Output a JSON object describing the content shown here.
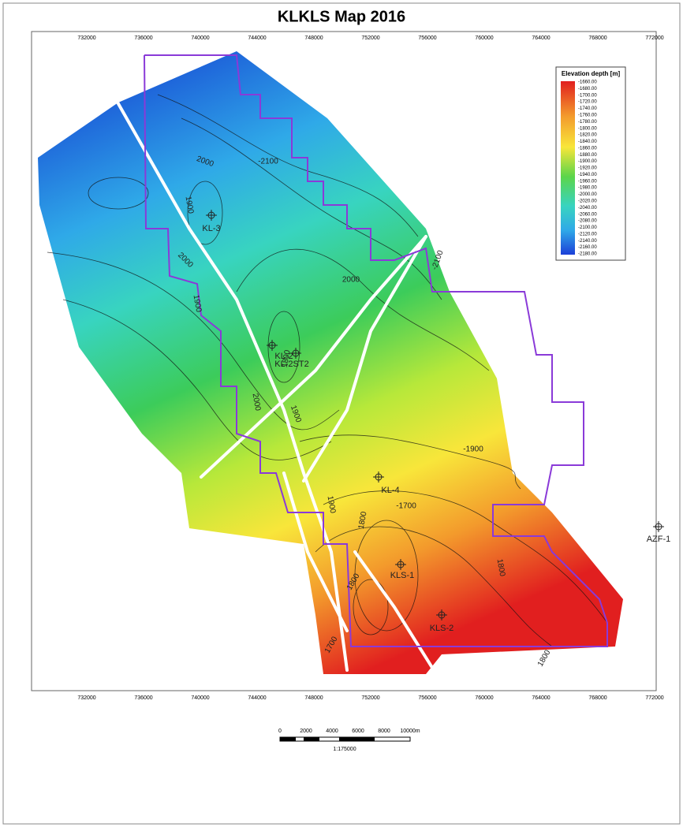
{
  "title": "KLKLS Map 2016",
  "x_axis_labels": [
    "732000",
    "736000",
    "740000",
    "744000",
    "748000",
    "752000",
    "756000",
    "760000",
    "764000",
    "768000",
    "772000"
  ],
  "legend": {
    "title": "Elevation depth [m]",
    "values": [
      "-1660.00",
      "-1680.00",
      "-1700.00",
      "-1720.00",
      "-1740.00",
      "-1760.00",
      "-1780.00",
      "-1800.00",
      "-1820.00",
      "-1840.00",
      "-1860.00",
      "-1880.00",
      "-1900.00",
      "-1920.00",
      "-1940.00",
      "-1960.00",
      "-1980.00",
      "-2000.00",
      "-2020.00",
      "-2040.00",
      "-2060.00",
      "-2080.00",
      "-2100.00",
      "-2120.00",
      "-2140.00",
      "-2160.00",
      "-2180.00"
    ]
  },
  "contour_labels": [
    "2000",
    "-2100",
    "1900",
    "2000",
    "-2100",
    "1900",
    "2000",
    "1800",
    "2000",
    "1900",
    "-1900",
    "1900",
    "1800",
    "-1700",
    "1800",
    "1800",
    "1700",
    "1800"
  ],
  "wells": [
    "KL-3",
    "KL-2",
    "KL-2ST2",
    "KL-4",
    "KLS-1",
    "KLS-2",
    "AZF-1"
  ],
  "scale_bar": {
    "ticks": [
      "0",
      "2000",
      "4000",
      "6000",
      "8000",
      "10000m"
    ],
    "ratio": "1:175000"
  }
}
